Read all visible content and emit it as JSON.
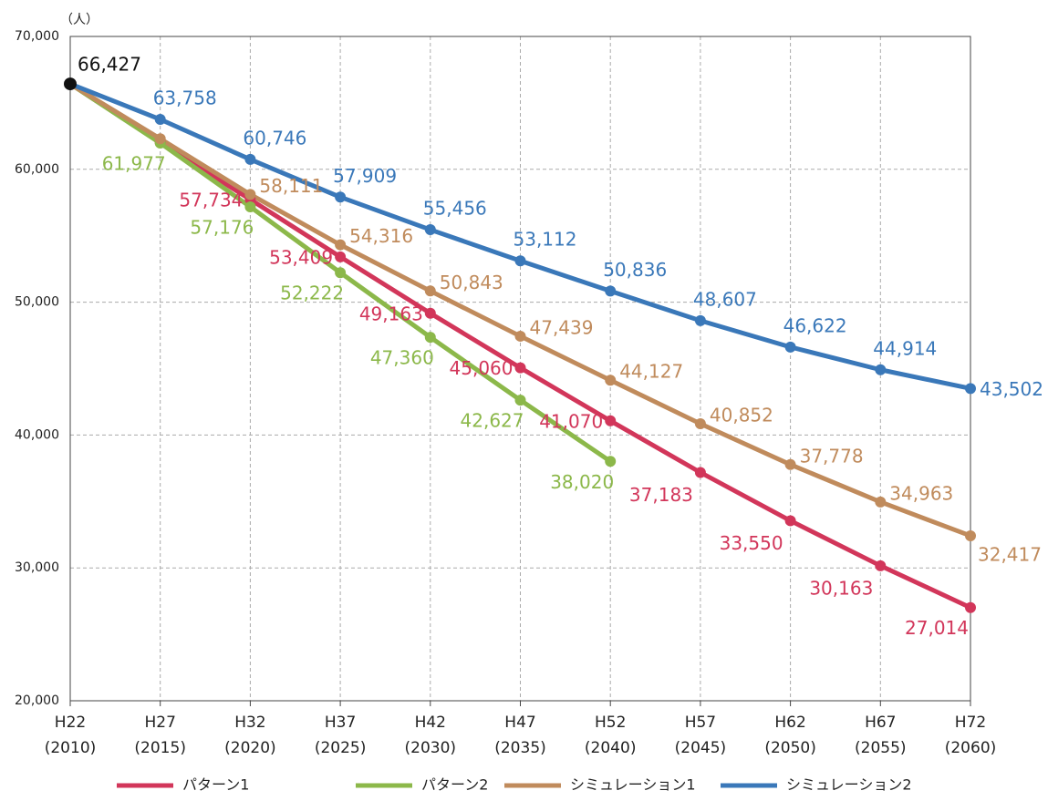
{
  "chart_data": {
    "type": "line",
    "y_unit": "（人）",
    "categories": [
      [
        "H22",
        "(2010)"
      ],
      [
        "H27",
        "(2015)"
      ],
      [
        "H32",
        "(2020)"
      ],
      [
        "H37",
        "(2025)"
      ],
      [
        "H42",
        "(2030)"
      ],
      [
        "H47",
        "(2035)"
      ],
      [
        "H52",
        "(2040)"
      ],
      [
        "H57",
        "(2045)"
      ],
      [
        "H62",
        "(2050)"
      ],
      [
        "H67",
        "(2055)"
      ],
      [
        "H72",
        "(2060)"
      ]
    ],
    "start_label": {
      "value": 66427,
      "label": "66,427",
      "color": "#111111"
    },
    "series": [
      {
        "name": "パターン1",
        "color": "#d2365a",
        "values": [
          66427,
          62000,
          57734,
          53409,
          49163,
          45060,
          41070,
          37183,
          33550,
          30163,
          27014
        ],
        "value_labels": [
          null,
          null,
          "57,734",
          "53,409",
          "49,163",
          "45,060",
          "41,070",
          "37,183",
          "33,550",
          "30,163",
          "27,014"
        ]
      },
      {
        "name": "パターン2",
        "color": "#8cb84a",
        "values": [
          66427,
          61977,
          57176,
          52222,
          47360,
          42627,
          38020,
          null,
          null,
          null,
          null
        ],
        "value_labels": [
          null,
          "61,977",
          "57,176",
          "52,222",
          "47,360",
          "42,627",
          "38,020",
          null,
          null,
          null,
          null
        ]
      },
      {
        "name": "シミュレーション1",
        "color": "#c08b5c",
        "values": [
          66427,
          62300,
          58111,
          54316,
          50843,
          47439,
          44127,
          40852,
          37778,
          34963,
          32417
        ],
        "value_labels": [
          null,
          null,
          "58,111",
          "54,316",
          "50,843",
          "47,439",
          "44,127",
          "40,852",
          "37,778",
          "34,963",
          "32,417"
        ]
      },
      {
        "name": "シミュレーション2",
        "color": "#3a78b9",
        "values": [
          66427,
          63758,
          60746,
          57909,
          55456,
          53112,
          50836,
          48607,
          46622,
          44914,
          43502
        ],
        "value_labels": [
          null,
          "63,758",
          "60,746",
          "57,909",
          "55,456",
          "53,112",
          "50,836",
          "48,607",
          "46,622",
          "44,914",
          "43,502"
        ]
      }
    ],
    "ylim": [
      20000,
      70000
    ],
    "yticks": [
      {
        "value": 20000,
        "label": "20,000"
      },
      {
        "value": 30000,
        "label": "30,000"
      },
      {
        "value": 40000,
        "label": "40,000"
      },
      {
        "value": 50000,
        "label": "50,000"
      },
      {
        "value": 60000,
        "label": "60,000"
      },
      {
        "value": 70000,
        "label": "70,000"
      }
    ],
    "grid": true,
    "legend": "bottom"
  }
}
